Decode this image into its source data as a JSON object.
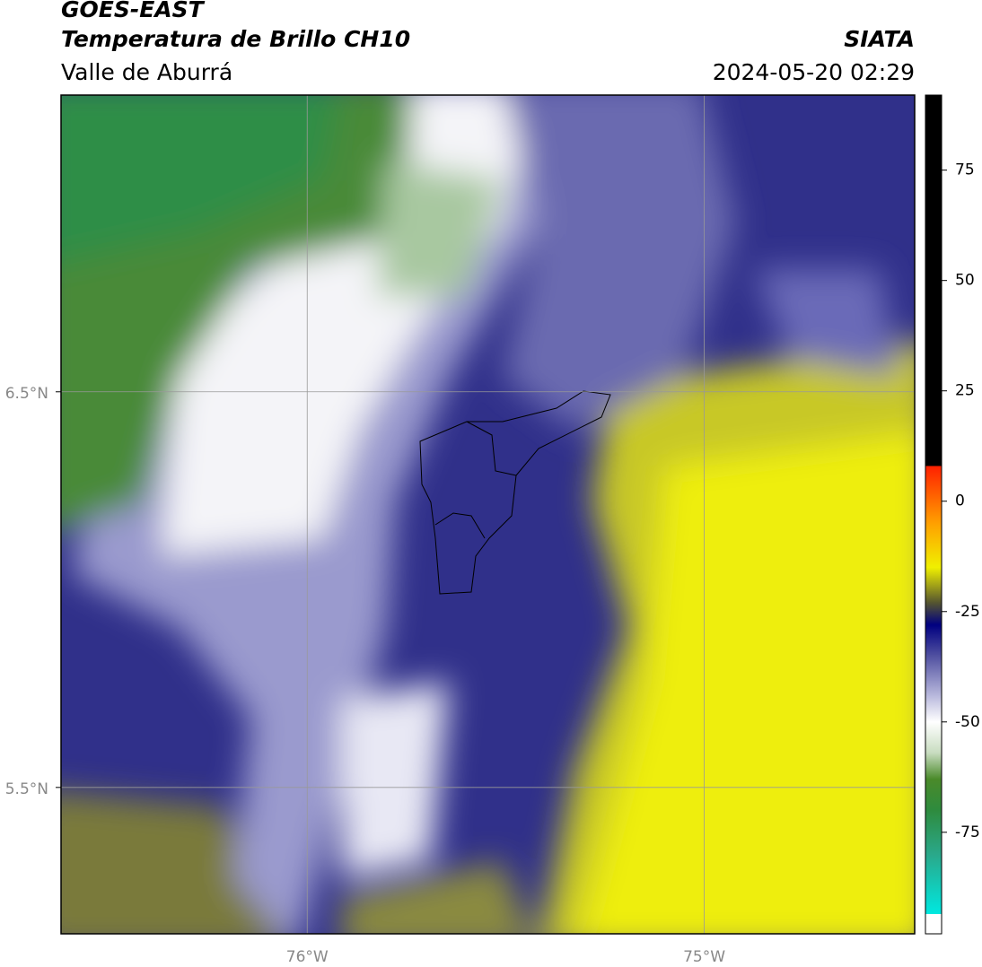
{
  "header": {
    "title": "GOES-EAST",
    "subtitle": "Temperatura de Brillo CH10",
    "region": "Valle de Aburrá",
    "source": "SIATA",
    "datetime": "2024-05-20 02:29"
  },
  "chart_data": {
    "type": "map",
    "xlim": [
      -76.62,
      -74.47
    ],
    "ylim": [
      5.13,
      7.25
    ],
    "xticks": [
      {
        "value": -76,
        "label": "76°W"
      },
      {
        "value": -75,
        "label": "75°W"
      }
    ],
    "yticks": [
      {
        "value": 6.5,
        "label": "6.5°N"
      },
      {
        "value": 5.5,
        "label": "5.5°N"
      }
    ],
    "grid": true,
    "colorbar": {
      "clim": [
        -98,
        92
      ],
      "ticks": [
        -75,
        -50,
        -25,
        0,
        25,
        50,
        75
      ],
      "colormap": [
        {
          "value": -98,
          "color": "#ffffff"
        },
        {
          "value": -93.5,
          "color": "#ffffff"
        },
        {
          "value": -93.5,
          "color": "#00e8e0"
        },
        {
          "value": -80,
          "color": "#2aa88a"
        },
        {
          "value": -70,
          "color": "#2e8b3e"
        },
        {
          "value": -63,
          "color": "#4a8a2a"
        },
        {
          "value": -57,
          "color": "#c8dcc0"
        },
        {
          "value": -50,
          "color": "#ffffff"
        },
        {
          "value": -44,
          "color": "#b8b8dc"
        },
        {
          "value": -35,
          "color": "#5050a0"
        },
        {
          "value": -28,
          "color": "#000080"
        },
        {
          "value": -23,
          "color": "#555530"
        },
        {
          "value": -15,
          "color": "#f0f000"
        },
        {
          "value": -5,
          "color": "#ffa000"
        },
        {
          "value": 8,
          "color": "#ff2000"
        },
        {
          "value": 8,
          "color": "#000000"
        },
        {
          "value": 92,
          "color": "#000000"
        }
      ]
    }
  }
}
